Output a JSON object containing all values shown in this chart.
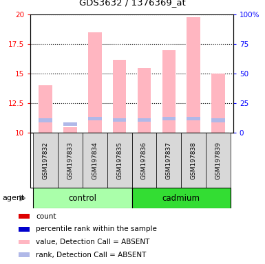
{
  "title": "GDS3632 / 1376369_at",
  "samples": [
    "GSM197832",
    "GSM197833",
    "GSM197834",
    "GSM197835",
    "GSM197836",
    "GSM197837",
    "GSM197838",
    "GSM197839"
  ],
  "groups": [
    "control",
    "control",
    "control",
    "control",
    "cadmium",
    "cadmium",
    "cadmium",
    "cadmium"
  ],
  "value_absent": [
    14.0,
    10.5,
    18.5,
    16.2,
    15.5,
    17.0,
    19.8,
    15.0
  ],
  "rank_absent": [
    11.05,
    10.75,
    11.2,
    11.1,
    11.1,
    11.2,
    11.2,
    11.05
  ],
  "rank_bar_height": 0.32,
  "ylim_left": [
    10,
    20
  ],
  "ylim_right": [
    0,
    100
  ],
  "yticks_left": [
    10,
    12.5,
    15,
    17.5,
    20
  ],
  "yticks_right": [
    0,
    25,
    50,
    75,
    100
  ],
  "ytick_labels_left": [
    "10",
    "12.5",
    "15",
    "17.5",
    "20"
  ],
  "ytick_labels_right": [
    "0",
    "25",
    "50",
    "75",
    "100%"
  ],
  "control_color_light": "#aaffaa",
  "control_color": "#90EE90",
  "cadmium_color": "#33dd33",
  "bar_color_absent": "#FFB6C1",
  "rank_color_absent": "#b0b8e8",
  "sample_box_color": "#d8d8d8",
  "legend_items": [
    {
      "label": "count",
      "color": "#dd0000"
    },
    {
      "label": "percentile rank within the sample",
      "color": "#0000cc"
    },
    {
      "label": "value, Detection Call = ABSENT",
      "color": "#FFB6C1"
    },
    {
      "label": "rank, Detection Call = ABSENT",
      "color": "#b0b8e8"
    }
  ]
}
